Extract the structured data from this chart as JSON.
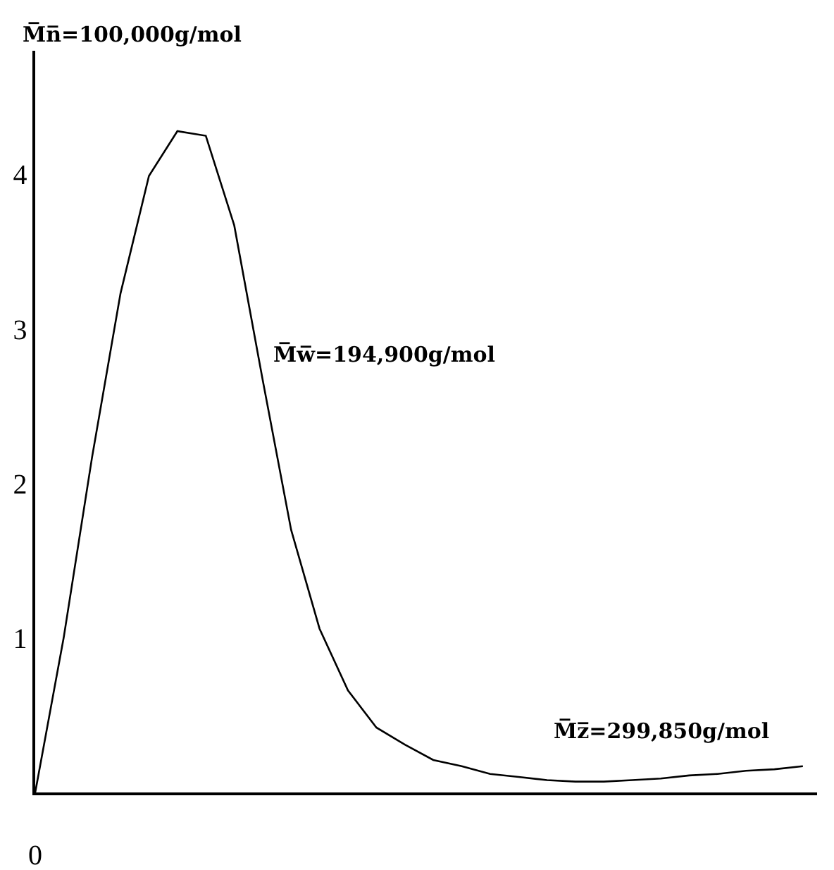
{
  "chart_data": {
    "type": "line",
    "categories": [
      null,
      null,
      null,
      null,
      null,
      null,
      null,
      null,
      null,
      null,
      null,
      null,
      null,
      null,
      null,
      null,
      null,
      null,
      null,
      null,
      null,
      null,
      null,
      null,
      null,
      null,
      null,
      null
    ],
    "series": [
      {
        "color": "#000000",
        "values": [
          0,
          1.0,
          2.17,
          3.23,
          3.99,
          4.28,
          4.25,
          3.67,
          2.67,
          1.7,
          1.06,
          0.66,
          0.42,
          0.31,
          0.21,
          0.17,
          0.12,
          0.1,
          0.08,
          0.07,
          0.07,
          0.08,
          0.09,
          0.11,
          0.12,
          0.14,
          0.15,
          0.17
        ]
      }
    ],
    "tick_labels": "y",
    "ylim": [
      0,
      4.8
    ],
    "yticks": [
      1,
      2,
      3,
      4
    ],
    "annotations": [
      "M̅n̅=100,000g/mol",
      "M̅w̅=194,900g/mol",
      "M̅z̅=299,850g/mol",
      "0"
    ],
    "grid": false,
    "marker": "none",
    "line_style": "solid"
  }
}
